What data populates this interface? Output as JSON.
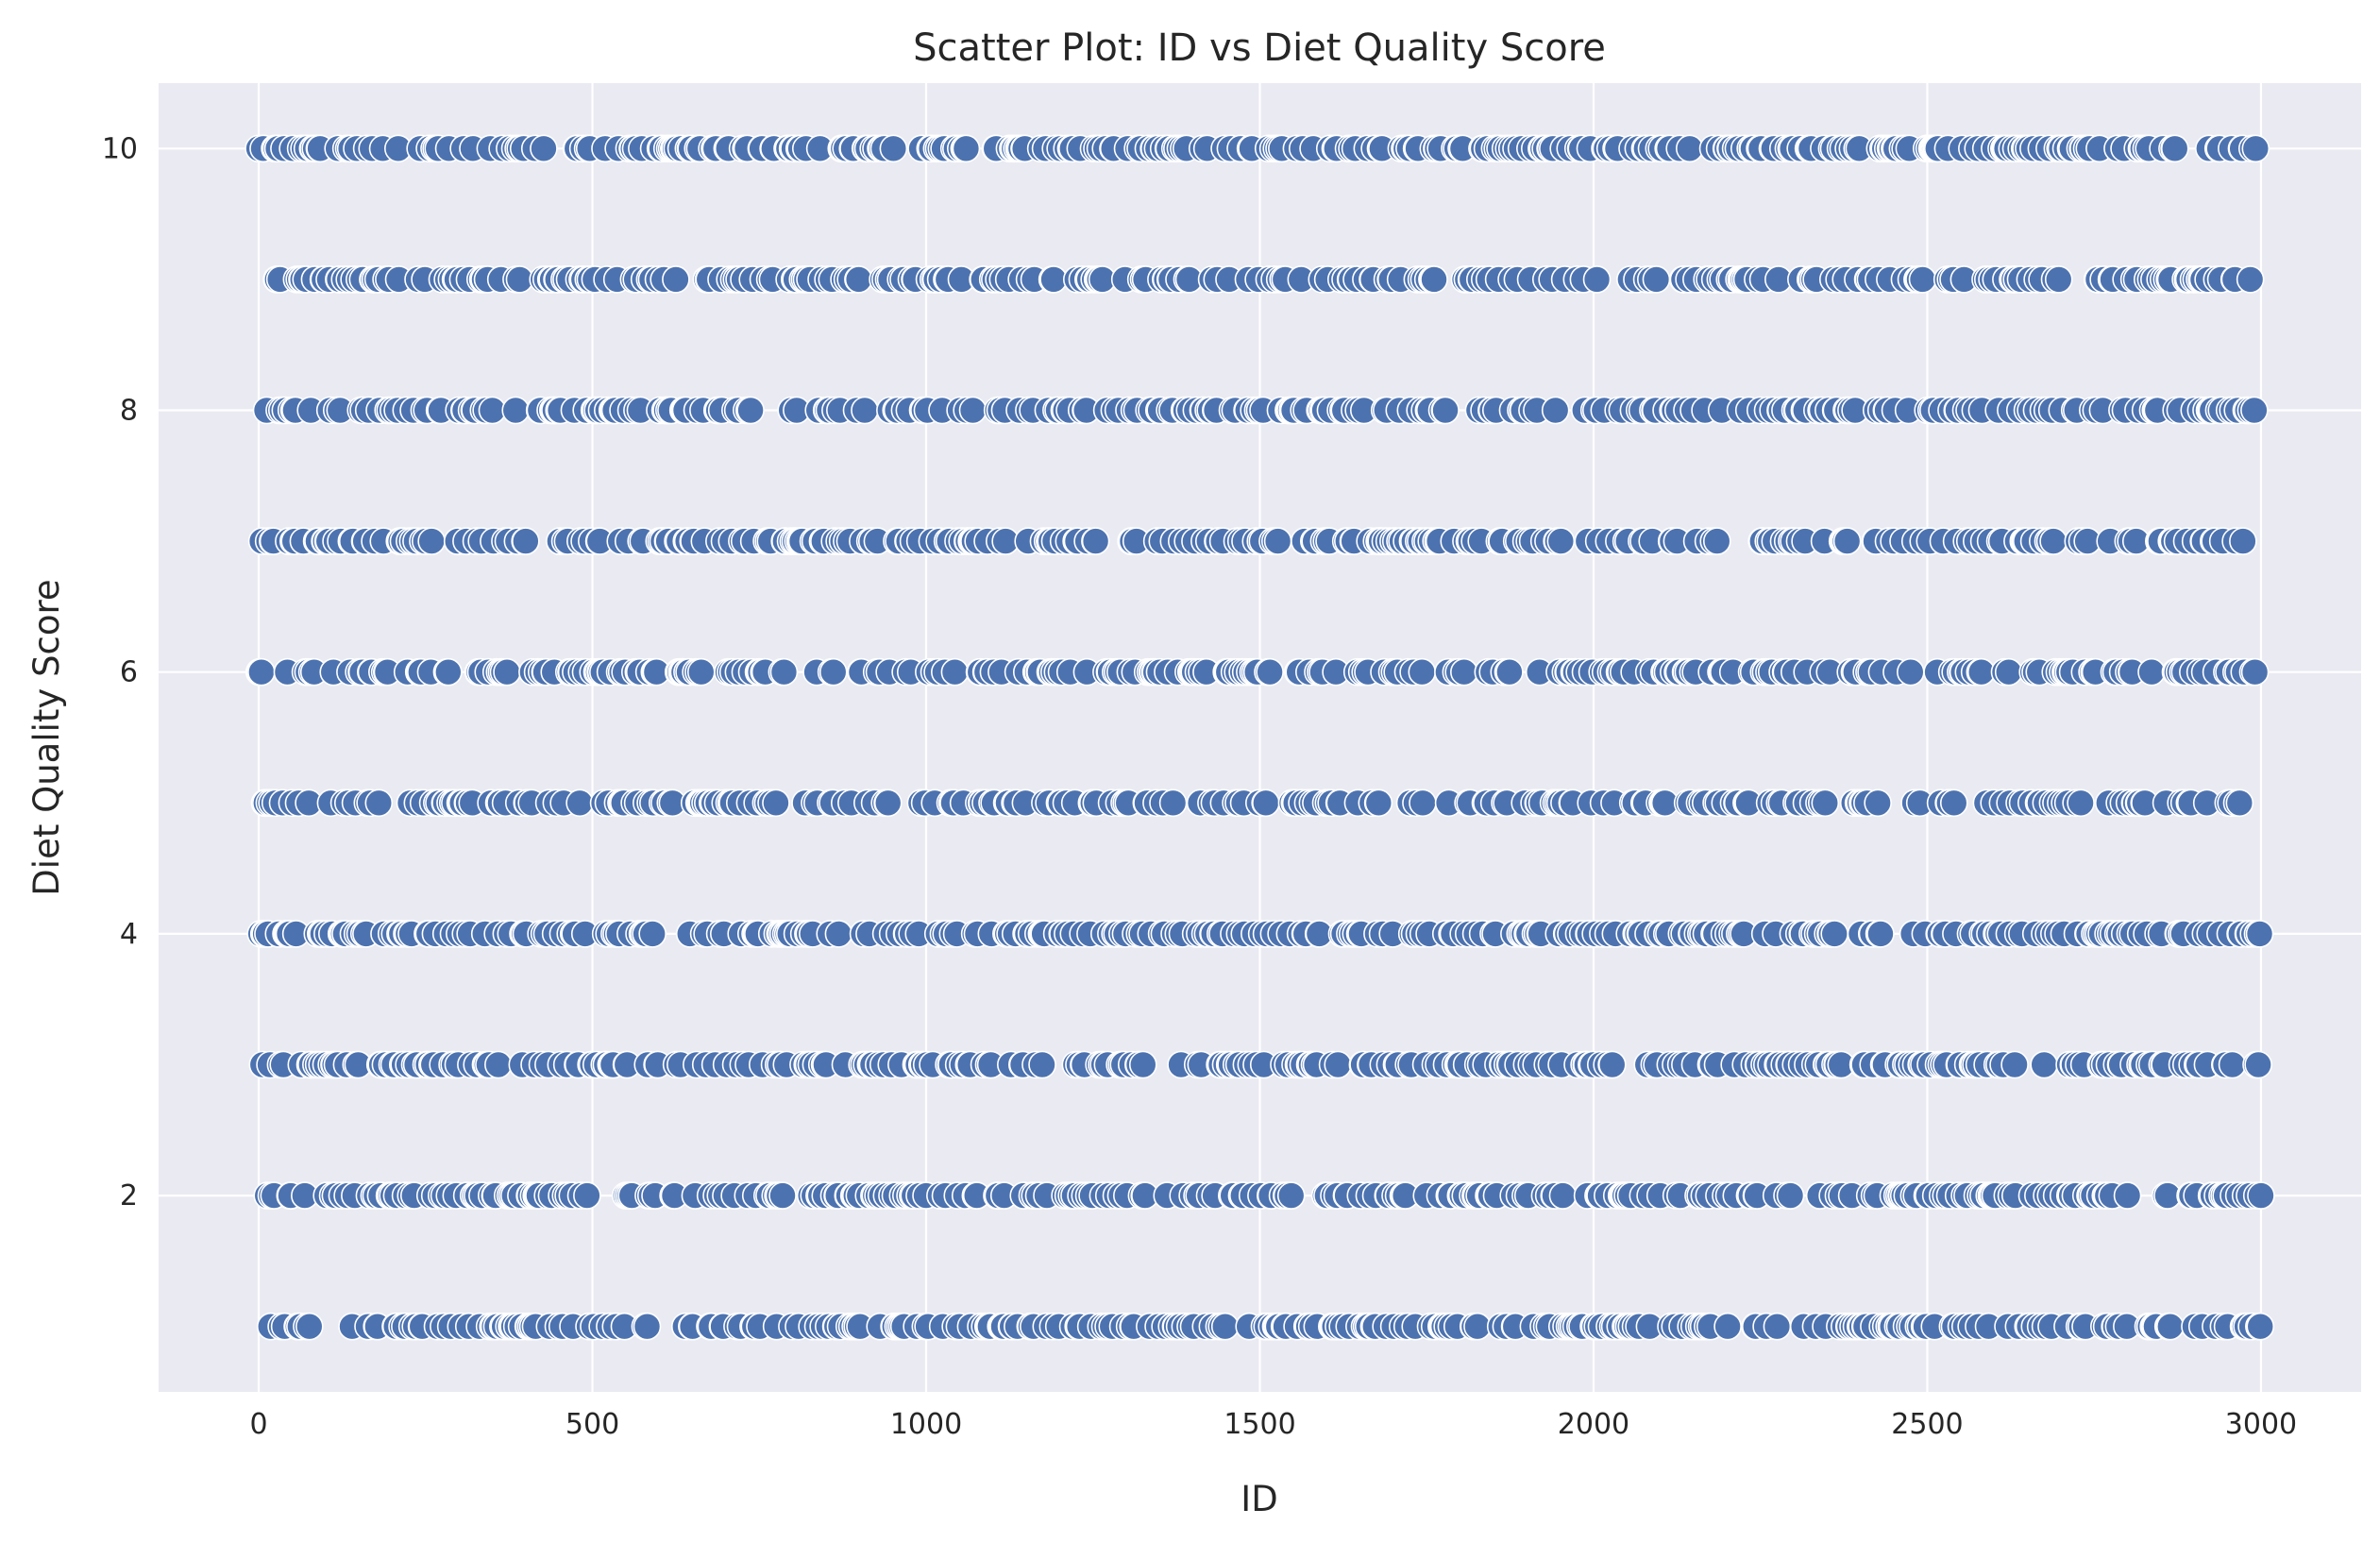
{
  "chart_data": {
    "type": "scatter",
    "title": "Scatter Plot: ID vs Diet Quality Score",
    "xlabel": "ID",
    "ylabel": "Diet Quality Score",
    "xlim": [
      -150,
      3150
    ],
    "ylim": [
      0.5,
      10.5
    ],
    "xticks": [
      0,
      500,
      1000,
      1500,
      2000,
      2500,
      3000
    ],
    "yticks": [
      2,
      4,
      6,
      8,
      10
    ],
    "grid": true,
    "background": "#eaeaf2",
    "grid_color": "#ffffff",
    "marker_color": "#4c72b0",
    "marker_edge_color": "#ffffff",
    "id_range": [
      0,
      3000
    ],
    "score_levels": [
      1,
      2,
      3,
      4,
      5,
      6,
      7,
      8,
      9,
      10
    ],
    "series": [
      {
        "description": "Approximately 3000 points, one per ID, each ID assigned an integer diet quality score between 1 and 10; points are densely and roughly uniformly spread along each score level across the full ID range."
      }
    ]
  }
}
